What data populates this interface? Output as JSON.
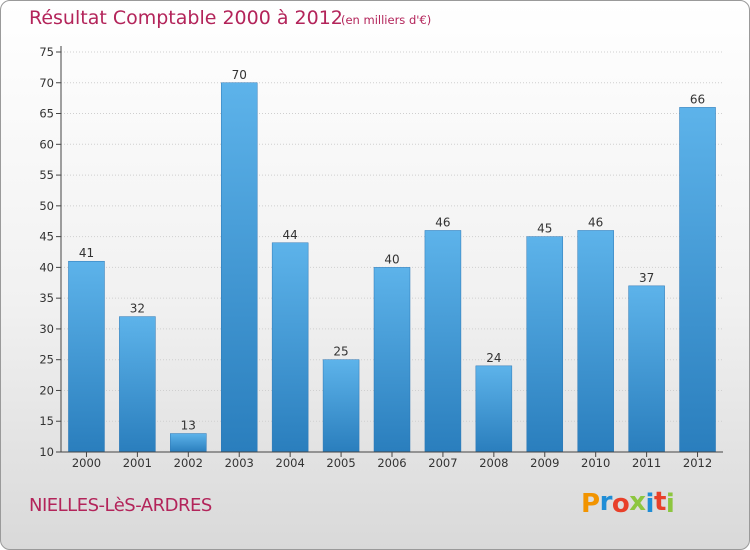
{
  "header": {
    "title": "Résultat Comptable 2000 à 2012",
    "subtitle": "(en milliers d'€)"
  },
  "footer": {
    "place": "NIELLES-LèS-ARDRES",
    "logo_text": "Proxiti",
    "logo_colors": [
      "#f29400",
      "#1f8dd6",
      "#e8402a",
      "#8dc63f",
      "#1f8dd6",
      "#e8402a",
      "#8dc63f"
    ]
  },
  "colors": {
    "title": "#b3245a",
    "bar_top": "#5db3ea",
    "bar_bottom": "#2a7ebd",
    "axis": "#444444",
    "grid": "#cfcfcf"
  },
  "chart_data": {
    "type": "bar",
    "title": "Résultat Comptable 2000 à 2012",
    "subtitle": "(en milliers d'€)",
    "xlabel": "",
    "ylabel": "",
    "categories": [
      "2000",
      "2001",
      "2002",
      "2003",
      "2004",
      "2005",
      "2006",
      "2007",
      "2008",
      "2009",
      "2010",
      "2011",
      "2012"
    ],
    "values": [
      41,
      32,
      13,
      70,
      44,
      25,
      40,
      46,
      24,
      45,
      46,
      37,
      66
    ],
    "ylim": [
      10,
      75
    ],
    "yticks": [
      10,
      15,
      20,
      25,
      30,
      35,
      40,
      45,
      50,
      55,
      60,
      65,
      70,
      75
    ],
    "grid": true,
    "data_labels": true
  }
}
